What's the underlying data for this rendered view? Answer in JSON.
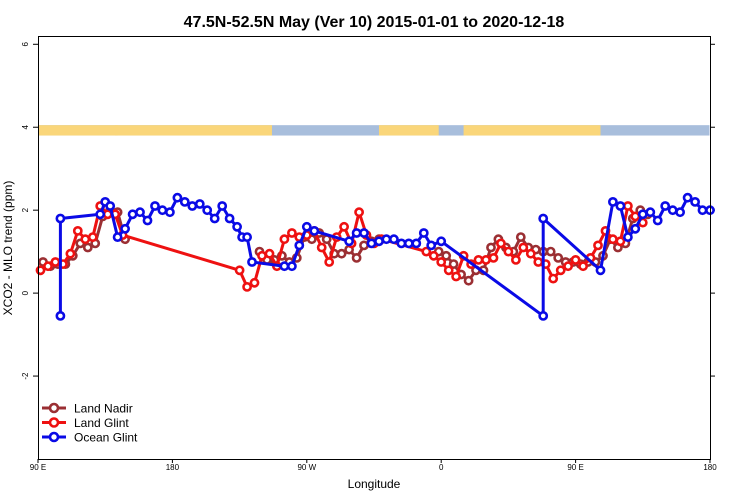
{
  "chart_data": {
    "type": "line",
    "title": "47.5N-52.5N May (Ver 10)   2015-01-01 to 2020-12-18",
    "xlabel": "Longitude",
    "ylabel": "XCO2 - MLO trend (ppm)",
    "xlim": [
      -90,
      180
    ],
    "ylim": [
      -4,
      6.2
    ],
    "x_ticks": [
      {
        "value": -90,
        "label": "90 E"
      },
      {
        "value": -36,
        "label": "180"
      },
      {
        "value": 18,
        "label": "90 W"
      },
      {
        "value": 72,
        "label": "0"
      },
      {
        "value": 126,
        "label": "90 E"
      },
      {
        "value": 180,
        "label": "180"
      }
    ],
    "y_ticks": [
      {
        "value": -2,
        "label": "-2"
      },
      {
        "value": 0,
        "label": "0"
      },
      {
        "value": 2,
        "label": "2"
      },
      {
        "value": 4,
        "label": "4"
      },
      {
        "value": 6,
        "label": "6"
      }
    ],
    "land_band": {
      "y_range": [
        3.8,
        4.05
      ],
      "land_color": "#fad67a",
      "ocean_color": "#a8bedc",
      "land_segments": [
        [
          -90,
          -58
        ],
        [
          -59,
          4
        ],
        [
          47,
          71
        ],
        [
          81,
          136
        ]
      ]
    },
    "legend_position": "bottom-left",
    "series": [
      {
        "name": "Land Nadir",
        "color": "#9b2f33",
        "x": [
          -88,
          -85,
          -82,
          -79,
          -76,
          -73,
          -70,
          -67,
          -64,
          -61,
          -58,
          -55,
          -52,
          -49,
          -46,
          -43,
          -40,
          -37,
          -34,
          -31,
          -28,
          -25,
          -22,
          -19,
          -16,
          -13,
          -10,
          -7,
          -4,
          -1,
          2,
          5,
          8,
          11,
          14,
          17,
          20,
          23,
          26,
          29,
          32,
          35,
          38,
          41,
          44,
          47,
          50,
          53,
          56,
          59,
          62,
          65,
          68,
          71,
          74,
          77,
          80,
          83,
          86,
          89,
          92,
          95,
          98,
          101,
          104,
          107,
          110,
          113,
          116,
          119,
          122,
          125,
          128,
          131,
          134,
          137,
          140,
          143,
          146,
          149,
          152,
          155
        ],
        "y": [
          0.75,
          0.65,
          0.7,
          0.7,
          0.9,
          1.2,
          1.1,
          1.2,
          1.85,
          2.0,
          1.95,
          1.3,
          null,
          null,
          null,
          null,
          null,
          null,
          null,
          null,
          null,
          null,
          null,
          null,
          null,
          null,
          null,
          null,
          null,
          1.0,
          0.8,
          0.8,
          0.9,
          0.75,
          0.85,
          1.35,
          1.3,
          1.45,
          1.3,
          0.95,
          0.95,
          1.05,
          0.85,
          1.15,
          1.25,
          1.3,
          null,
          null,
          null,
          null,
          null,
          null,
          null,
          1.0,
          0.9,
          0.7,
          0.45,
          0.3,
          0.55,
          0.55,
          1.1,
          1.3,
          1.1,
          1.0,
          1.35,
          1.1,
          1.05,
          1.0,
          1.0,
          0.85,
          0.75,
          0.75,
          0.7,
          0.75,
          0.75,
          0.9,
          1.3,
          1.1,
          1.2,
          1.8,
          2.0,
          1.9
        ]
      },
      {
        "name": "Land Glint",
        "color": "#ee1111",
        "x": [
          -89,
          -86,
          -83,
          -80,
          -77,
          -74,
          -71,
          -68,
          -65,
          -62,
          -59,
          -56,
          -9,
          -6,
          -3,
          0,
          3,
          6,
          9,
          12,
          15,
          18,
          21,
          24,
          27,
          30,
          33,
          36,
          39,
          42,
          45,
          48,
          66,
          69,
          72,
          75,
          78,
          81,
          84,
          87,
          90,
          93,
          96,
          99,
          102,
          105,
          108,
          111,
          114,
          117,
          120,
          123,
          126,
          129,
          132,
          135,
          138,
          141,
          144,
          147,
          150,
          153
        ],
        "y": [
          0.55,
          0.65,
          0.75,
          0.7,
          0.95,
          1.5,
          1.3,
          1.35,
          2.1,
          1.9,
          1.9,
          1.4,
          0.55,
          0.15,
          0.25,
          0.9,
          0.95,
          0.65,
          1.3,
          1.45,
          1.35,
          1.4,
          1.5,
          1.1,
          0.75,
          1.35,
          1.6,
          1.2,
          1.95,
          1.4,
          1.2,
          1.3,
          1.0,
          0.9,
          0.75,
          0.55,
          0.4,
          0.9,
          0.7,
          0.8,
          0.8,
          0.85,
          1.2,
          1.0,
          0.8,
          1.1,
          0.95,
          0.75,
          0.7,
          0.35,
          0.55,
          0.65,
          0.8,
          0.65,
          0.85,
          1.15,
          1.5,
          1.3,
          1.25,
          2.1,
          1.85,
          1.7
        ]
      },
      {
        "name": "Ocean Glint",
        "color": "#0a0ae6",
        "x": [
          -81,
          -81,
          -65,
          -63,
          -61,
          -58,
          -55,
          -52,
          -49,
          -46,
          -43,
          -40,
          -37,
          -34,
          -31,
          -28,
          -25,
          -22,
          -19,
          -16,
          -13,
          -10,
          -8,
          -6,
          -4,
          9,
          12,
          15,
          18,
          21,
          35,
          38,
          41,
          44,
          47,
          50,
          53,
          56,
          59,
          62,
          65,
          68,
          72,
          113,
          113,
          136,
          141,
          144,
          147,
          150,
          153,
          156,
          159,
          162,
          165,
          168,
          171,
          174,
          177,
          180
        ],
        "y": [
          -0.55,
          1.8,
          1.9,
          2.2,
          2.1,
          1.35,
          1.55,
          1.9,
          1.95,
          1.75,
          2.1,
          2.0,
          1.95,
          2.3,
          2.2,
          2.1,
          2.15,
          2.0,
          1.8,
          2.1,
          1.8,
          1.6,
          1.35,
          1.35,
          0.75,
          0.65,
          0.65,
          1.15,
          1.6,
          1.5,
          1.25,
          1.45,
          1.45,
          1.2,
          1.25,
          1.3,
          1.3,
          1.2,
          1.2,
          1.2,
          1.45,
          1.15,
          1.25,
          -0.55,
          1.8,
          0.55,
          2.2,
          2.1,
          1.35,
          1.55,
          1.9,
          1.95,
          1.75,
          2.1,
          2.0,
          1.95,
          2.3,
          2.2,
          2.0,
          2.0
        ]
      }
    ]
  }
}
